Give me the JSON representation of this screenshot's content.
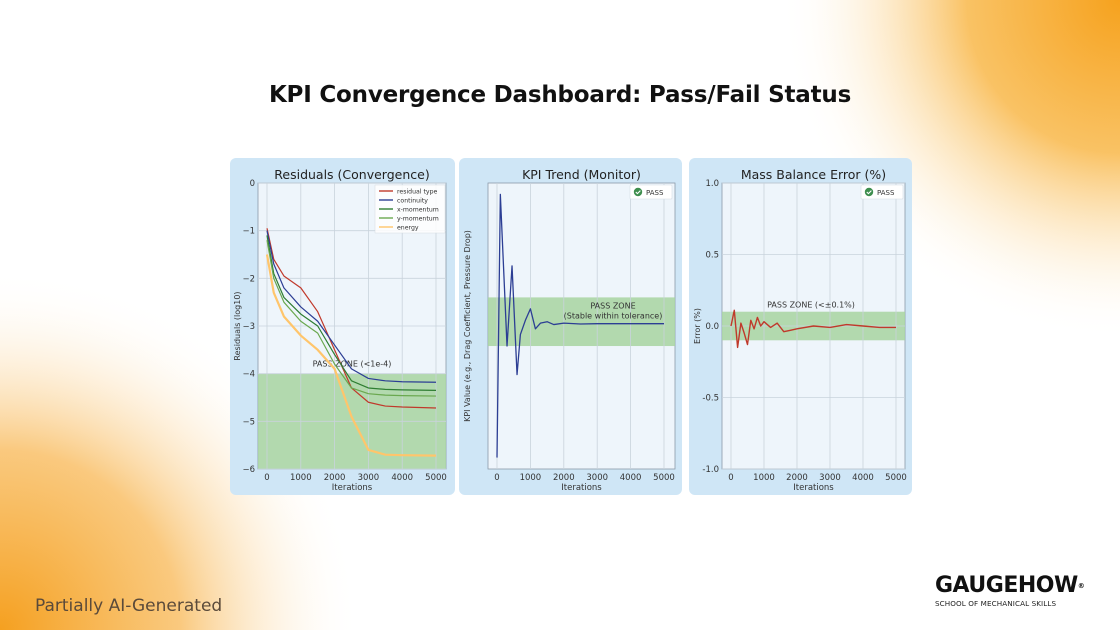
{
  "page": {
    "title": "KPI Convergence Dashboard: Pass/Fail Status",
    "footer_note": "Partially AI-Generated",
    "brand": {
      "name": "GAUGEHOW",
      "registered": "®",
      "tagline": "SCHOOL OF MECHANICAL SKILLS"
    },
    "colors": {
      "accent_orange": "#f6a21e",
      "panel_bg": "#cfe6f6",
      "plot_bg": "#eef5fb",
      "pass_zone": "#a7d3a0",
      "pass_badge": "#3e8e4e"
    }
  },
  "chart_data": [
    {
      "type": "line",
      "title": "Residuals (Convergence)",
      "xlabel": "Iterations",
      "ylabel": "Residuals (log10)",
      "xlim": [
        -300,
        5300
      ],
      "ylim": [
        -6,
        0
      ],
      "xticks": [
        "0",
        "1000",
        "2000",
        "3000",
        "4000",
        "5000"
      ],
      "yticks": [
        "0",
        "−1",
        "−2",
        "−3",
        "−4",
        "−5",
        "−6"
      ],
      "grid": true,
      "legend_position": "upper right",
      "legend": [
        "residual type",
        "continuity",
        "x-momentum",
        "y-momentum",
        "energy"
      ],
      "annotation": "PASS ZONE (<1e-4)",
      "pass_zone": [
        -6,
        -4
      ],
      "x": [
        0,
        200,
        500,
        1000,
        1500,
        2000,
        2500,
        3000,
        3500,
        4000,
        5000
      ],
      "series": [
        {
          "name": "residual type",
          "color": "#c0392b",
          "values": [
            -0.95,
            -1.6,
            -1.95,
            -2.2,
            -2.7,
            -3.5,
            -4.3,
            -4.6,
            -4.68,
            -4.7,
            -4.72
          ]
        },
        {
          "name": "continuity",
          "color": "#2c3e94",
          "values": [
            -1.0,
            -1.7,
            -2.2,
            -2.6,
            -2.9,
            -3.4,
            -3.9,
            -4.1,
            -4.15,
            -4.17,
            -4.18
          ]
        },
        {
          "name": "x-momentum",
          "color": "#2e7d32",
          "values": [
            -1.1,
            -1.9,
            -2.4,
            -2.75,
            -3.0,
            -3.6,
            -4.15,
            -4.3,
            -4.33,
            -4.34,
            -4.35
          ]
        },
        {
          "name": "y-momentum",
          "color": "#6aa84f",
          "values": [
            -1.2,
            -2.0,
            -2.5,
            -2.9,
            -3.15,
            -3.8,
            -4.3,
            -4.42,
            -4.45,
            -4.46,
            -4.47
          ]
        },
        {
          "name": "energy",
          "color": "#ffc56b",
          "values": [
            -1.5,
            -2.3,
            -2.8,
            -3.2,
            -3.5,
            -3.9,
            -4.9,
            -5.6,
            -5.7,
            -5.71,
            -5.72
          ]
        }
      ],
      "badge": null
    },
    {
      "type": "line",
      "title": "KPI Trend (Monitor)",
      "xlabel": "Iterations",
      "ylabel": "KPI Value (e.g., Drag Coefficient, Pressure Drop)",
      "xlim": [
        -300,
        5300
      ],
      "xticks": [
        "0",
        "1000",
        "2000",
        "3000",
        "4000",
        "5000"
      ],
      "yticks": [],
      "grid": true,
      "annotation": "PASS ZONE\n(Stable within tolerance)",
      "badge": "PASS",
      "x": [
        0,
        100,
        300,
        450,
        600,
        700,
        850,
        1000,
        1150,
        1300,
        1500,
        1700,
        2000,
        2500,
        3000,
        4000,
        5000
      ],
      "series": [
        {
          "name": "KPI",
          "color": "#2c3e94",
          "values": [
            0.04,
            0.96,
            0.43,
            0.71,
            0.33,
            0.47,
            0.52,
            0.56,
            0.49,
            0.51,
            0.515,
            0.505,
            0.51,
            0.507,
            0.508,
            0.508,
            0.508
          ]
        }
      ],
      "pass_zone_normalized": [
        0.43,
        0.6
      ]
    },
    {
      "type": "line",
      "title": "Mass Balance Error (%)",
      "xlabel": "Iterations",
      "ylabel": "Error (%)",
      "xlim": [
        -300,
        5300
      ],
      "ylim": [
        -1.0,
        1.0
      ],
      "xticks": [
        "0",
        "1000",
        "2000",
        "3000",
        "4000",
        "5000"
      ],
      "yticks": [
        "1.0",
        "0.5",
        "0.0",
        "-0.5",
        "-1.0"
      ],
      "grid": true,
      "annotation": "PASS ZONE (<±0.1%)",
      "pass_zone": [
        -0.1,
        0.1
      ],
      "badge": "PASS",
      "x": [
        0,
        100,
        200,
        300,
        400,
        500,
        600,
        700,
        800,
        900,
        1000,
        1200,
        1400,
        1600,
        1800,
        2000,
        2500,
        3000,
        3500,
        4000,
        4500,
        5000
      ],
      "series": [
        {
          "name": "Mass Balance Error",
          "color": "#c0392b",
          "values": [
            0.0,
            0.11,
            -0.15,
            0.02,
            -0.05,
            -0.13,
            0.04,
            -0.02,
            0.06,
            0.0,
            0.03,
            -0.01,
            0.02,
            -0.04,
            -0.03,
            -0.02,
            0.0,
            -0.01,
            0.01,
            0.0,
            -0.01,
            -0.01
          ]
        }
      ]
    }
  ]
}
